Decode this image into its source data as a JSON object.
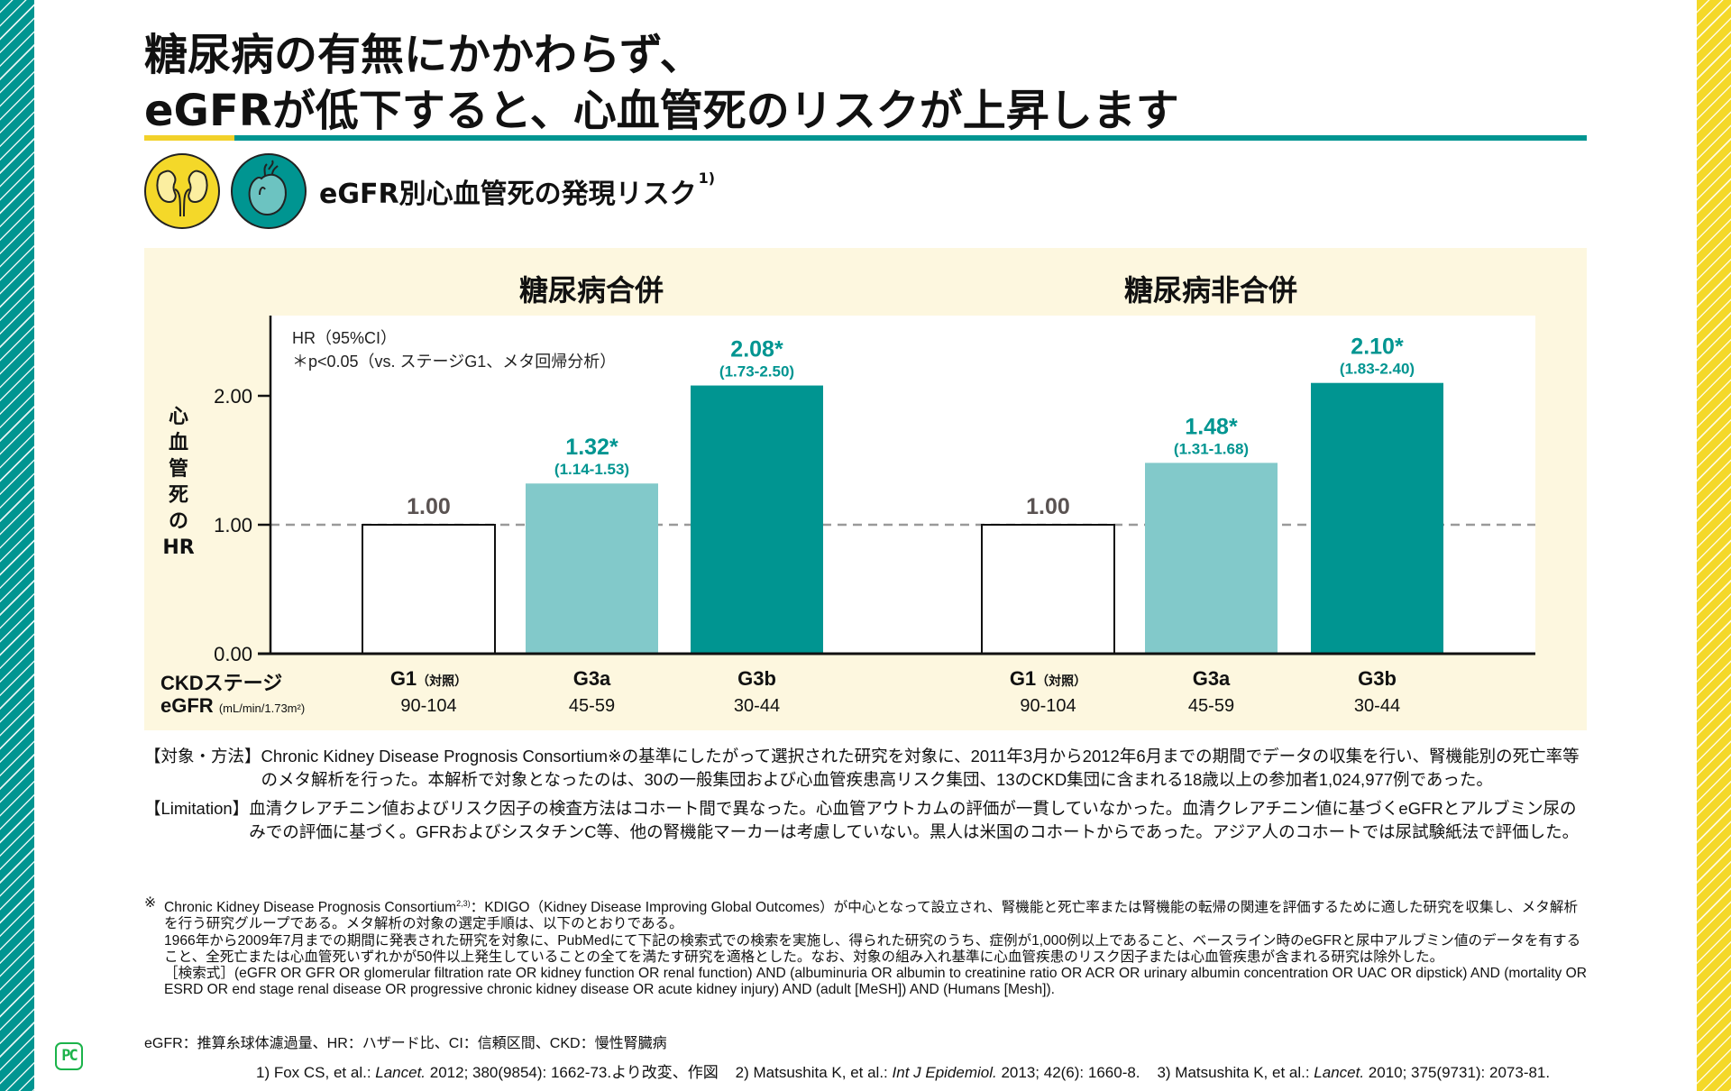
{
  "title": {
    "line1": "糖尿病の有無にかかわらず、",
    "line2": "eGFRが低下すると、心血管死のリスクが上昇します"
  },
  "subtitle": {
    "text": "eGFR別心血管死の発現リスク",
    "ref": "1)"
  },
  "icons": {
    "left": "kidney-icon",
    "right": "heart-icon"
  },
  "colors": {
    "teal": "#009591",
    "light_teal": "#82c9ca",
    "yellow": "#f2d12a",
    "panel_bg": "#fdf7df",
    "ref_bar_outline": "#111111",
    "value_gray": "#5a5352"
  },
  "chart_data": {
    "type": "bar",
    "ylabel": "心血管死のHR",
    "ylim": [
      0,
      2.5
    ],
    "yticks": [
      "0.00",
      "1.00",
      "2.00"
    ],
    "ytick_values": [
      0,
      1,
      2
    ],
    "reference_line": 1.0,
    "legend_note_line1": "HR（95%CI）",
    "legend_note_line2": "＊p<0.05（vs. ステージG1、メタ回帰分析）",
    "row_labels": {
      "stage": "CKDステージ",
      "egfr": "eGFR",
      "egfr_unit": "(mL/min/1.73m²)"
    },
    "categories": [
      {
        "stage": "G1",
        "note": "（対照）",
        "egfr": "90-104"
      },
      {
        "stage": "G3a",
        "note": "",
        "egfr": "45-59"
      },
      {
        "stage": "G3b",
        "note": "",
        "egfr": "30-44"
      }
    ],
    "series": [
      {
        "name": "糖尿病合併",
        "values": [
          1.0,
          1.32,
          2.08
        ],
        "labels": [
          "1.00",
          "1.32*",
          "2.08*"
        ],
        "ci": [
          "",
          "(1.14-1.53)",
          "(1.73-2.50)"
        ],
        "styles": [
          "reference",
          "light",
          "dark"
        ]
      },
      {
        "name": "糖尿病非合併",
        "values": [
          1.0,
          1.48,
          2.1
        ],
        "labels": [
          "1.00",
          "1.48*",
          "2.10*"
        ],
        "ci": [
          "",
          "(1.31-1.68)",
          "(1.83-2.40)"
        ],
        "styles": [
          "reference",
          "light",
          "dark"
        ]
      }
    ]
  },
  "notes": {
    "methods_key": "【対象・方法】",
    "methods_text": "Chronic Kidney Disease Prognosis Consortium※の基準にしたがって選択された研究を対象に、2011年3月から2012年6月までの期間でデータの収集を行い、腎機能別の死亡率等のメタ解析を行った。本解析で対象となったのは、30の一般集団および心血管疾患高リスク集団、13のCKD集団に含まれる18歳以上の参加者1,024,977例であった。",
    "limitation_key": "【Limitation】",
    "limitation_text": "血清クレアチニン値およびリスク因子の検査方法はコホート間で異なった。心血管アウトカムの評価が一貫していなかった。血清クレアチニン値に基づくeGFRとアルブミン尿のみでの評価に基づく。GFRおよびシスタチンC等、他の腎機能マーカーは考慮していない。黒人は米国のコホートからであった。アジア人のコホートでは尿試験紙法で評価した。"
  },
  "footnote": {
    "mark": "※",
    "lead": "Chronic Kidney Disease Prognosis Consortium",
    "lead_ref": "2,3)",
    "body1": "：KDIGO（Kidney Disease Improving Global Outcomes）が中心となって設立され、腎機能と死亡率または腎機能の転帰の関連を評価するために適した研究を収集し、メタ解析を行う研究グループである。メタ解析の対象の選定手順は、以下のとおりである。",
    "body2": "1966年から2009年7月までの期間に発表された研究を対象に、PubMedにて下記の検索式での検索を実施し、得られた研究のうち、症例が1,000例以上であること、ベースライン時のeGFRと尿中アルブミン値のデータを有すること、全死亡または心血管死いずれかが50件以上発生していることの全てを満たす研究を適格とした。なお、対象の組み入れ基準に心血管疾患のリスク因子または心血管疾患が含まれる研究は除外した。",
    "body3": "［検索式］(eGFR OR GFR OR glomerular filtration rate OR kidney function OR renal function) AND (albuminuria OR albumin to creatinine ratio OR ACR OR urinary albumin concentration OR UAC OR dipstick) AND (mortality OR ESRD OR end stage renal disease OR progressive chronic kidney disease OR acute kidney injury) AND (adult [MeSH]) AND (Humans [Mesh])."
  },
  "abbreviations": "eGFR：推算糸球体濾過量、HR：ハザード比、CI：信頼区間、CKD：慢性腎臓病",
  "references": {
    "r1_pre": "1) Fox CS, et al.: ",
    "r1_journal": "Lancet.",
    "r1_post": " 2012; 380(9854): 1662-73.より改変、作図",
    "r2_pre": "2) Matsushita K, et al.: ",
    "r2_journal": "Int J Epidemiol.",
    "r2_post": " 2013; 42(6): 1660-8.",
    "r3_pre": "3) Matsushita K, et al.: ",
    "r3_journal": "Lancet.",
    "r3_post": " 2010; 375(9731): 2073-81."
  },
  "logo": {
    "text": "PC"
  }
}
